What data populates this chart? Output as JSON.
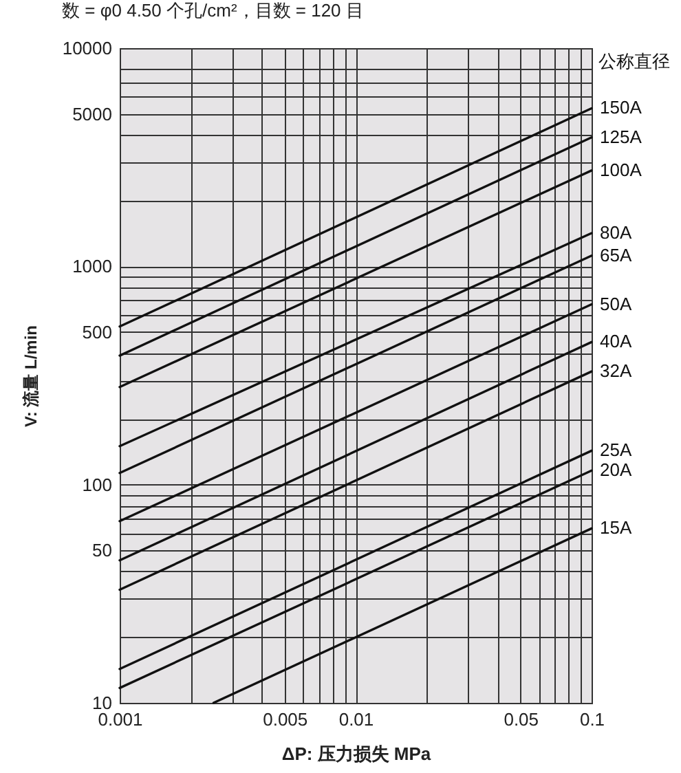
{
  "chart_data": {
    "type": "line",
    "title": "数 = φ0 4.50 个孔/cm²，目数 = 120 目",
    "xlabel": "ΔP: 压力损失 MPa",
    "ylabel": "V: 流量 L/min",
    "legend_title": "公称直径",
    "log": "xy",
    "grid": true,
    "legend": false,
    "marker": "none",
    "line_style": "solid",
    "xlim": [
      0.001,
      0.1
    ],
    "ylim": [
      10,
      10000
    ],
    "xticks": [
      0.001,
      {
        "value": 0.002,
        "label": null
      },
      {
        "value": 0.003,
        "label": null
      },
      {
        "value": 0.004,
        "label": null
      },
      0.005,
      {
        "value": 0.006,
        "label": null
      },
      {
        "value": 0.007,
        "label": null
      },
      {
        "value": 0.008,
        "label": null
      },
      {
        "value": 0.009,
        "label": null
      },
      0.01,
      {
        "value": 0.02,
        "label": null
      },
      {
        "value": 0.03,
        "label": null
      },
      {
        "value": 0.04,
        "label": null
      },
      0.05,
      {
        "value": 0.06,
        "label": null
      },
      {
        "value": 0.07,
        "label": null
      },
      {
        "value": 0.08,
        "label": null
      },
      {
        "value": 0.09,
        "label": null
      },
      0.1
    ],
    "yticks": [
      10,
      {
        "value": 20,
        "label": null
      },
      {
        "value": 30,
        "label": null
      },
      {
        "value": 40,
        "label": null
      },
      50,
      {
        "value": 60,
        "label": null
      },
      {
        "value": 70,
        "label": null
      },
      {
        "value": 80,
        "label": null
      },
      {
        "value": 90,
        "label": null
      },
      100,
      {
        "value": 200,
        "label": null
      },
      {
        "value": 300,
        "label": null
      },
      {
        "value": 400,
        "label": null
      },
      500,
      {
        "value": 600,
        "label": null
      },
      {
        "value": 700,
        "label": null
      },
      {
        "value": 800,
        "label": null
      },
      {
        "value": 900,
        "label": null
      },
      1000,
      {
        "value": 2000,
        "label": null
      },
      {
        "value": 3000,
        "label": null
      },
      {
        "value": 4000,
        "label": null
      },
      5000,
      {
        "value": 6000,
        "label": null
      },
      {
        "value": 7000,
        "label": null
      },
      {
        "value": 8000,
        "label": null
      },
      10000
    ],
    "series": [
      {
        "name": "150A",
        "color": "#111111",
        "x": [
          0.001,
          0.1
        ],
        "values": [
          530,
          5300
        ]
      },
      {
        "name": "125A",
        "color": "#111111",
        "x": [
          0.001,
          0.1
        ],
        "values": [
          390,
          3900
        ]
      },
      {
        "name": "100A",
        "color": "#111111",
        "x": [
          0.001,
          0.1
        ],
        "values": [
          280,
          2750
        ]
      },
      {
        "name": "80A",
        "color": "#111111",
        "x": [
          0.001,
          0.1
        ],
        "values": [
          150,
          1420
        ]
      },
      {
        "name": "65A",
        "color": "#111111",
        "x": [
          0.001,
          0.1
        ],
        "values": [
          113,
          1120
        ]
      },
      {
        "name": "50A",
        "color": "#111111",
        "x": [
          0.001,
          0.1
        ],
        "values": [
          68,
          670
        ]
      },
      {
        "name": "40A",
        "color": "#111111",
        "x": [
          0.001,
          0.1
        ],
        "values": [
          45,
          450
        ]
      },
      {
        "name": "32A",
        "color": "#111111",
        "x": [
          0.001,
          0.1
        ],
        "values": [
          33,
          330
        ]
      },
      {
        "name": "25A",
        "color": "#111111",
        "x": [
          0.001,
          0.1
        ],
        "values": [
          14.3,
          143
        ]
      },
      {
        "name": "20A",
        "color": "#111111",
        "x": [
          0.001,
          0.1
        ],
        "values": [
          11.7,
          116
        ]
      },
      {
        "name": "15A",
        "color": "#111111",
        "x": [
          0.0025,
          0.1
        ],
        "values": [
          10,
          63
        ]
      }
    ]
  }
}
